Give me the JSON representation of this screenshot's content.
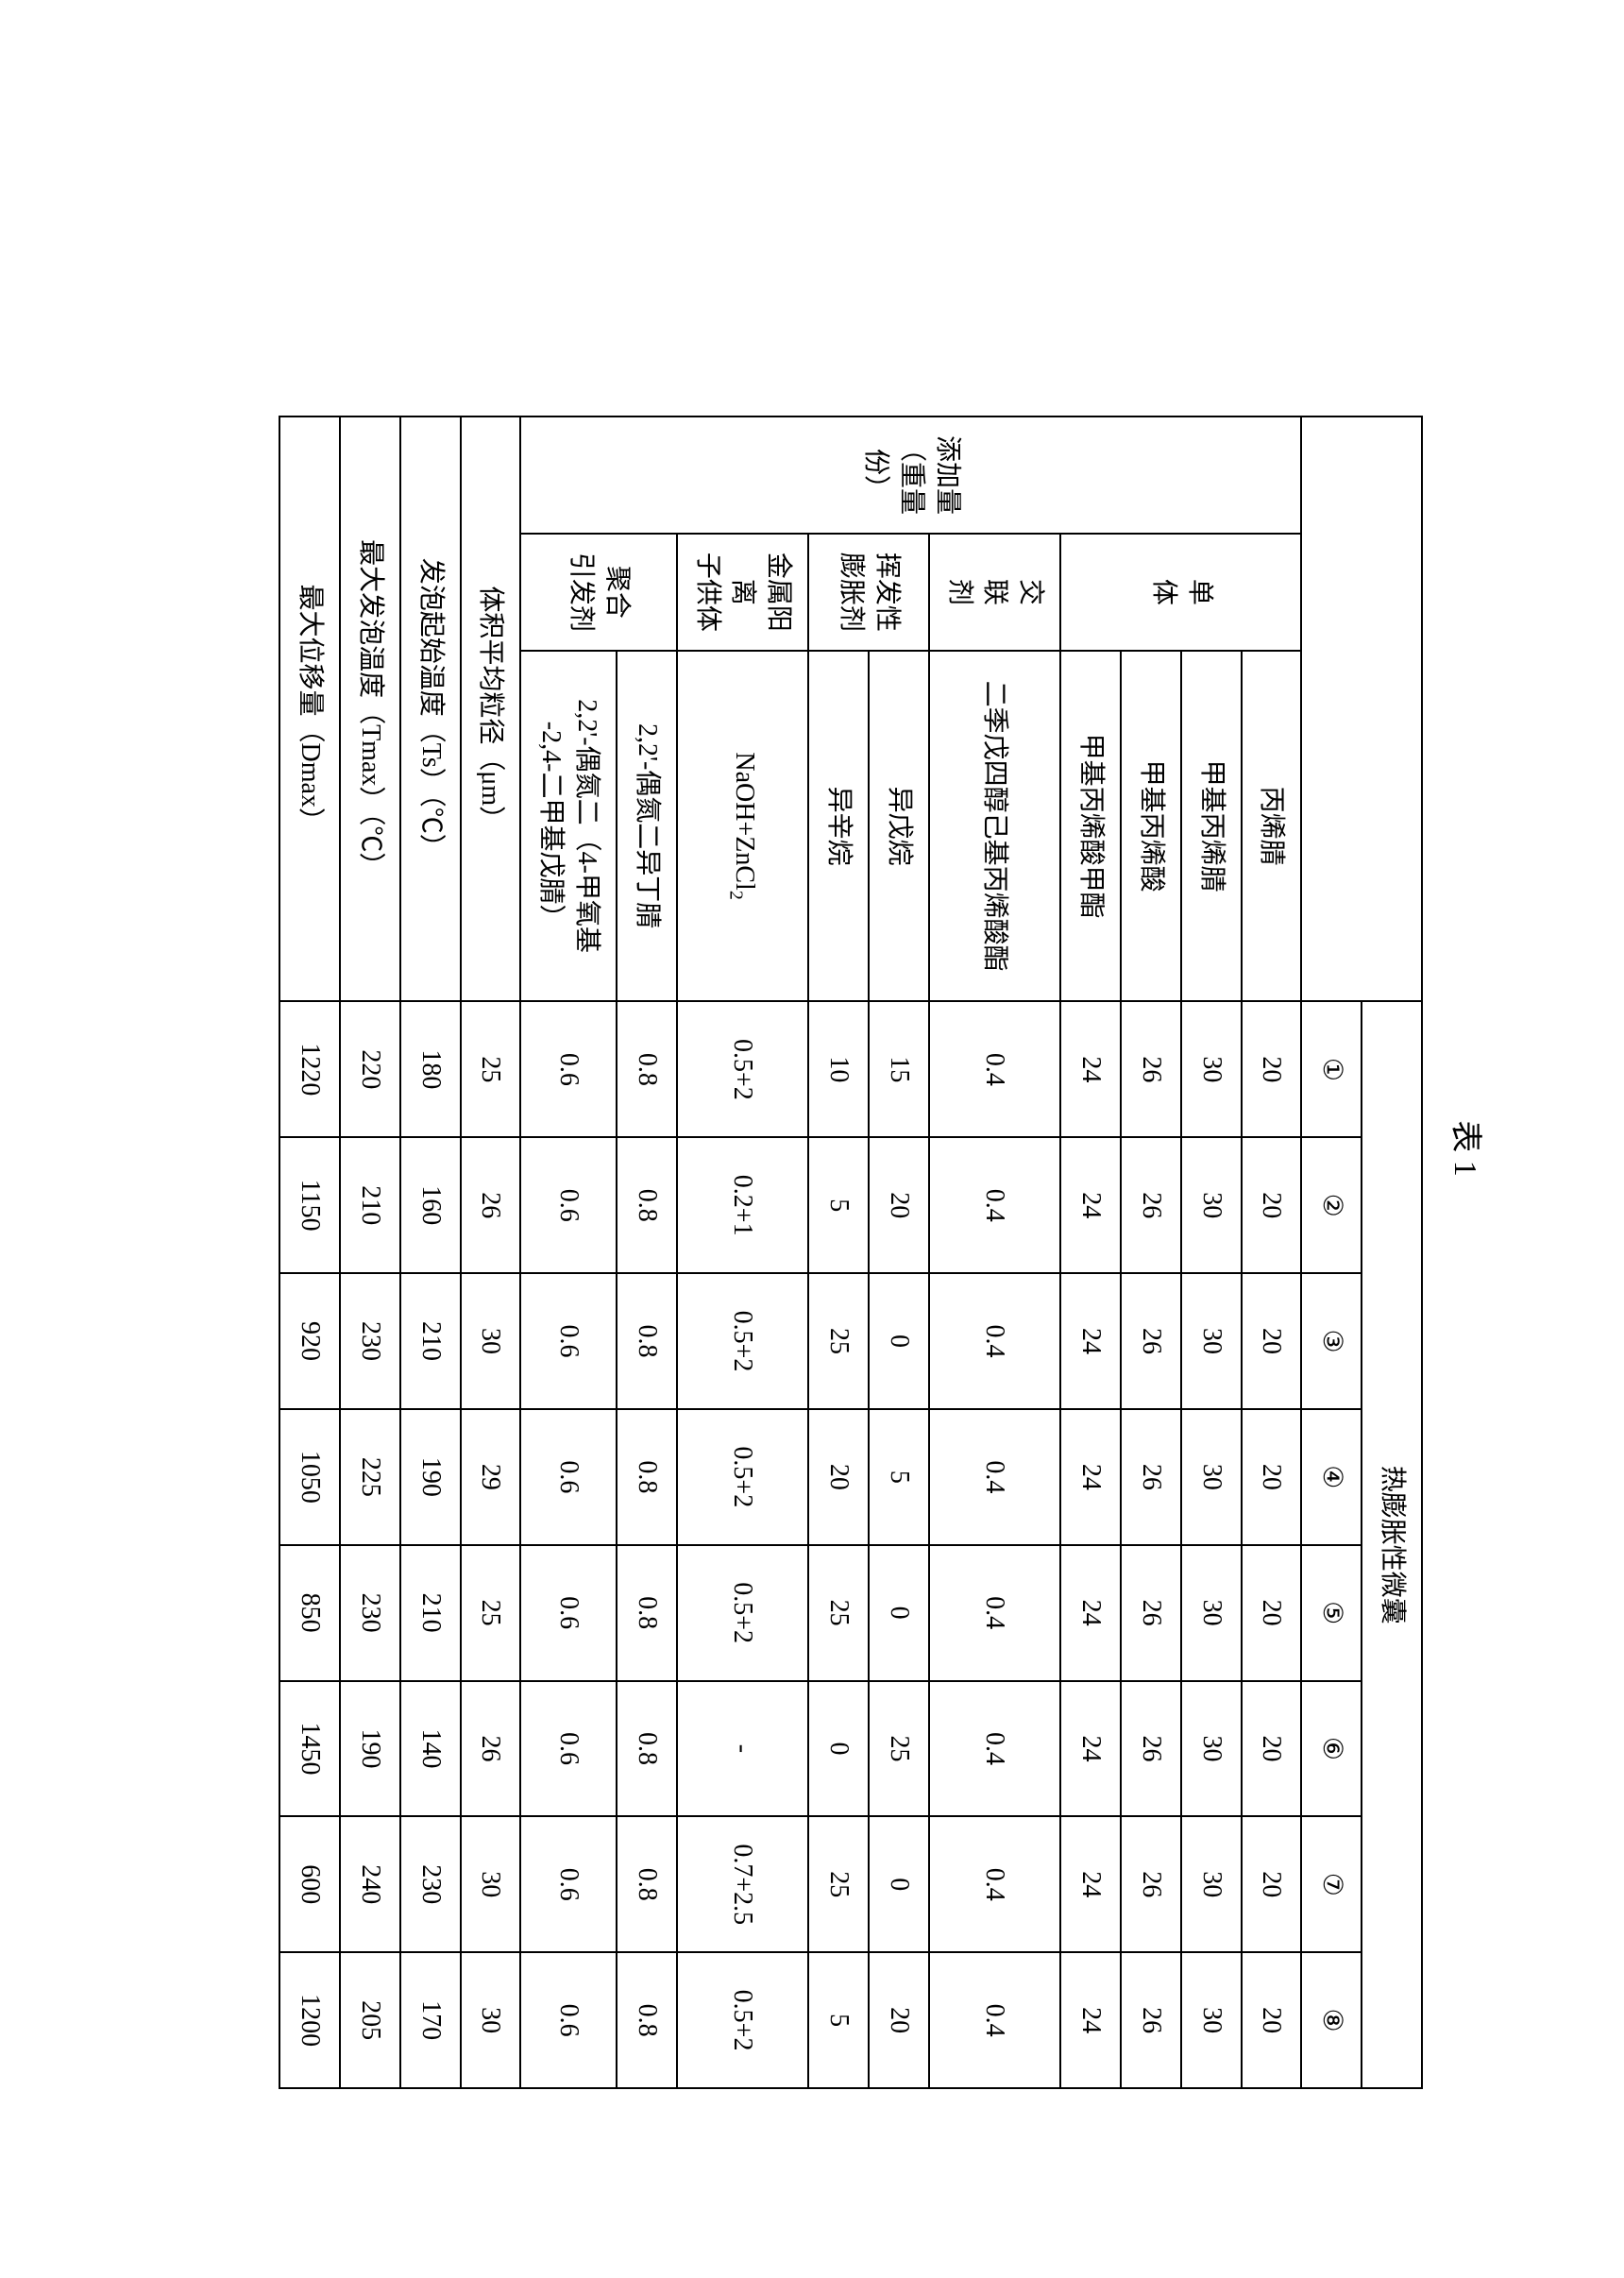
{
  "title": "表 1",
  "spanHeader": "热膨胀性微囊",
  "colLabels": [
    "①",
    "②",
    "③",
    "④",
    "⑤",
    "⑥",
    "⑦",
    "⑧"
  ],
  "groupAddAmount": "添加量\n（重量份）",
  "groupMonomer": "单\n体",
  "groupCrosslinker": "交\n联\n剂",
  "groupBlowing": "挥发性\n膨胀剂",
  "groupMetal": "金属阳离\n子供体",
  "groupInitiator": "聚合\n引发剂",
  "rowLabels": {
    "r1": "丙烯腈",
    "r2": "甲基丙烯腈",
    "r3": "甲基丙烯酸",
    "r4": "甲基丙烯酸甲酯",
    "r5": "二季戊四醇己基丙烯酸酯",
    "r6": "异戊烷",
    "r7": "异辛烷",
    "r8": "NaOH+ZnCl₂",
    "r9": "2,2'-偶氮二异丁腈",
    "r10": "2,2'-偶氮二（4-甲氧基\n-2,4-二甲基戊腈）",
    "r11": "体积平均粒径（μm）",
    "r12": "发泡起始温度（Ts）（℃）",
    "r13": "最大发泡温度（Tmax）（℃）",
    "r14": "最大位移量（Dmax）"
  },
  "data": {
    "r1": [
      "20",
      "20",
      "20",
      "20",
      "20",
      "20",
      "20",
      "20"
    ],
    "r2": [
      "30",
      "30",
      "30",
      "30",
      "30",
      "30",
      "30",
      "30"
    ],
    "r3": [
      "26",
      "26",
      "26",
      "26",
      "26",
      "26",
      "26",
      "26"
    ],
    "r4": [
      "24",
      "24",
      "24",
      "24",
      "24",
      "24",
      "24",
      "24"
    ],
    "r5": [
      "0.4",
      "0.4",
      "0.4",
      "0.4",
      "0.4",
      "0.4",
      "0.4",
      "0.4"
    ],
    "r6": [
      "15",
      "20",
      "0",
      "5",
      "0",
      "25",
      "0",
      "20"
    ],
    "r7": [
      "10",
      "5",
      "25",
      "20",
      "25",
      "0",
      "25",
      "5"
    ],
    "r8": [
      "0.5+2",
      "0.2+1",
      "0.5+2",
      "0.5+2",
      "0.5+2",
      "-",
      "0.7+2.5",
      "0.5+2"
    ],
    "r9": [
      "0.8",
      "0.8",
      "0.8",
      "0.8",
      "0.8",
      "0.8",
      "0.8",
      "0.8"
    ],
    "r10": [
      "0.6",
      "0.6",
      "0.6",
      "0.6",
      "0.6",
      "0.6",
      "0.6",
      "0.6"
    ],
    "r11": [
      "25",
      "26",
      "30",
      "29",
      "25",
      "26",
      "30",
      "30"
    ],
    "r12": [
      "180",
      "160",
      "210",
      "190",
      "210",
      "140",
      "230",
      "170"
    ],
    "r13": [
      "220",
      "210",
      "230",
      "225",
      "230",
      "190",
      "240",
      "205"
    ],
    "r14": [
      "1220",
      "1150",
      "920",
      "1050",
      "850",
      "1450",
      "600",
      "1200"
    ]
  }
}
